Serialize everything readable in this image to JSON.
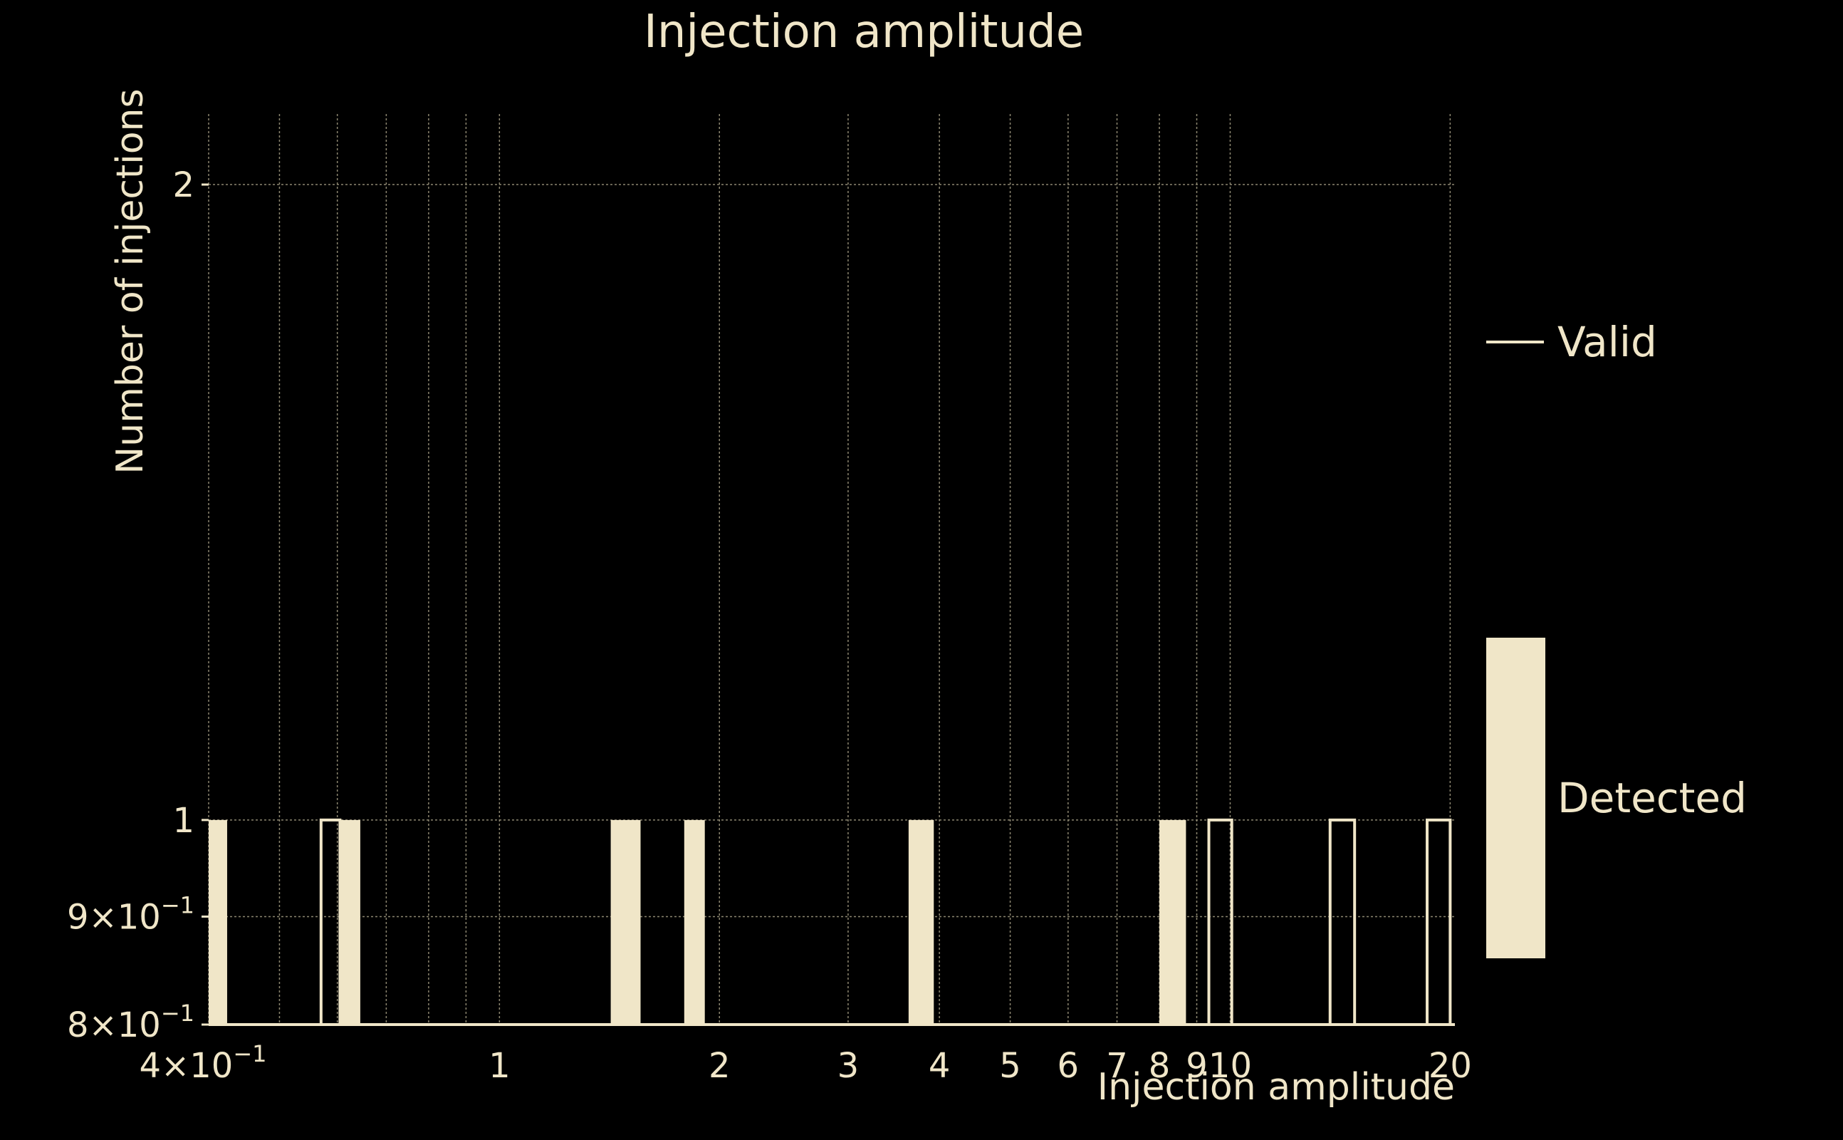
{
  "chart_data": {
    "type": "bar",
    "title": "Injection amplitude",
    "xlabel": "Injection amplitude",
    "ylabel": "Number of injections",
    "x_scale": "log",
    "y_scale": "log",
    "xlim": [
      0.4,
      20.3
    ],
    "ylim": [
      0.8,
      2.16
    ],
    "grid": true,
    "x_ticks": [
      {
        "value": 0.4,
        "label": "4×10",
        "sup": "−1"
      },
      {
        "value": 1,
        "label": "1",
        "sup": ""
      },
      {
        "value": 2,
        "label": "2",
        "sup": ""
      },
      {
        "value": 3,
        "label": "3",
        "sup": ""
      },
      {
        "value": 4,
        "label": "4",
        "sup": ""
      },
      {
        "value": 5,
        "label": "5",
        "sup": ""
      },
      {
        "value": 6,
        "label": "6",
        "sup": ""
      },
      {
        "value": 7,
        "label": "7",
        "sup": ""
      },
      {
        "value": 8,
        "label": "8",
        "sup": ""
      },
      {
        "value": 9,
        "label": "9",
        "sup": ""
      },
      {
        "value": 10,
        "label": "10",
        "sup": ""
      },
      {
        "value": 20,
        "label": "20",
        "sup": ""
      }
    ],
    "x_minor_gridlines": [
      0.5,
      0.6,
      0.7,
      0.8,
      0.9
    ],
    "y_ticks": [
      {
        "value": 0.8,
        "label": "8×10",
        "sup": "−1"
      },
      {
        "value": 0.9,
        "label": "9×10",
        "sup": "−1"
      },
      {
        "value": 1,
        "label": "1",
        "sup": ""
      },
      {
        "value": 2,
        "label": "2",
        "sup": ""
      }
    ],
    "series": [
      {
        "name": "Valid",
        "style": "step-outline",
        "bins": [
          {
            "x0": 0.57,
            "x1": 0.605,
            "value": 1
          },
          {
            "x0": 9.35,
            "x1": 10.05,
            "value": 1
          },
          {
            "x0": 13.7,
            "x1": 14.8,
            "value": 1
          },
          {
            "x0": 18.6,
            "x1": 20.0,
            "value": 1
          }
        ]
      },
      {
        "name": "Detected",
        "style": "filled",
        "bins": [
          {
            "x0": 0.4,
            "x1": 0.424,
            "value": 1
          },
          {
            "x0": 0.605,
            "x1": 0.645,
            "value": 1
          },
          {
            "x0": 1.42,
            "x1": 1.56,
            "value": 1
          },
          {
            "x0": 1.79,
            "x1": 1.91,
            "value": 1
          },
          {
            "x0": 3.63,
            "x1": 3.93,
            "value": 1
          },
          {
            "x0": 8.0,
            "x1": 8.7,
            "value": 1
          }
        ]
      }
    ],
    "legend": {
      "position": "right",
      "entries": [
        {
          "label": "Valid",
          "marker": "line"
        },
        {
          "label": "Detected",
          "marker": "filled-rect"
        }
      ]
    },
    "colors": {
      "background": "#000000",
      "foreground": "#f0e6c8",
      "grid": "#8c8670"
    }
  }
}
